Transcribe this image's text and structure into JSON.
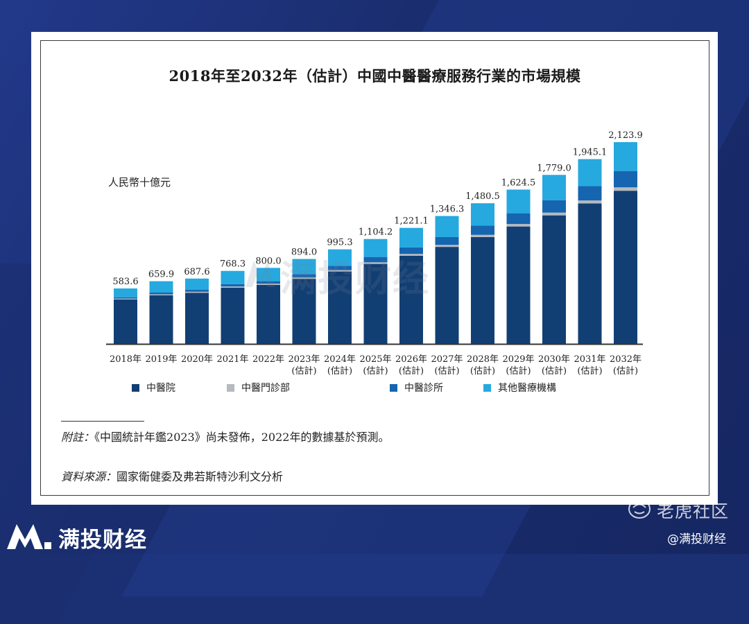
{
  "page": {
    "title": "2018年至2032年（估計）中國中醫醫療服務行業的市場規模",
    "unit": "人民幣十億元",
    "note_label": "附註：",
    "note_text": "《中國統計年鑑2023》尚未發佈，2022年的數據基於預測。",
    "source_label": "資料來源：",
    "source_text": "國家衛健委及弗若斯特沙利文分析"
  },
  "watermark": {
    "center_text": "满投财经",
    "brand_name": "满投财经",
    "tiger_name": "老虎社区",
    "handle": "@满投财经"
  },
  "colors": {
    "hospital": "#123f73",
    "outpatient": "#b6b9bd",
    "clinic": "#1565b0",
    "other": "#26a9df",
    "axis": "#333333",
    "background": "#1b2f73"
  },
  "chart_data": {
    "type": "bar",
    "stacked": true,
    "title": "2018年至2032年（估計）中國中醫醫療服務行業的市場規模",
    "ylabel": "人民幣十億元",
    "ylim": [
      0,
      2200
    ],
    "grid": false,
    "legend_position": "bottom",
    "categories": [
      "2018年",
      "2019年",
      "2020年",
      "2021年",
      "2022年",
      "2023年",
      "2024年",
      "2025年",
      "2026年",
      "2027年",
      "2028年",
      "2029年",
      "2030年",
      "2031年",
      "2032年"
    ],
    "category_sublabels": [
      "",
      "",
      "",
      "",
      "",
      "(估計)",
      "(估計)",
      "(估計)",
      "(估計)",
      "(估計)",
      "(估計)",
      "(估計)",
      "(估計)",
      "(估計)",
      "(估計)"
    ],
    "totals": [
      583.6,
      659.9,
      687.6,
      768.3,
      800.0,
      894.0,
      995.3,
      1104.2,
      1221.1,
      1346.3,
      1480.5,
      1624.5,
      1779.0,
      1945.1,
      2123.9
    ],
    "total_labels": [
      "583.6",
      "659.9",
      "687.6",
      "768.3",
      "800.0",
      "894.0",
      "995.3",
      "1,104.2",
      "1,221.1",
      "1,346.3",
      "1,480.5",
      "1,624.5",
      "1,779.0",
      "1,945.1",
      "2,123.9"
    ],
    "series": [
      {
        "name": "中醫院",
        "color": "#123f73",
        "values": [
          468.0,
          512.0,
          538.0,
          592.0,
          622.0,
          685.0,
          762.0,
          842.0,
          928.0,
          1021.0,
          1124.0,
          1236.0,
          1353.0,
          1478.0,
          1612.0
        ]
      },
      {
        "name": "中醫門診部",
        "color": "#b6b9bd",
        "values": [
          9.0,
          10.0,
          11.0,
          12.0,
          12.0,
          14.0,
          15.0,
          17.0,
          19.0,
          21.0,
          24.0,
          26.0,
          29.0,
          32.0,
          36.0
        ]
      },
      {
        "name": "中醫診所",
        "color": "#1565b0",
        "values": [
          14.0,
          18.0,
          20.0,
          24.0,
          26.0,
          35.0,
          45.0,
          56.0,
          68.0,
          82.0,
          97.0,
          113.0,
          131.0,
          151.0,
          172.0
        ]
      },
      {
        "name": "其他醫療機構",
        "color": "#26a9df",
        "values": [
          92.6,
          119.9,
          118.6,
          140.3,
          140.0,
          160.0,
          173.3,
          189.2,
          206.1,
          222.3,
          235.5,
          249.5,
          266.0,
          284.1,
          303.9
        ]
      }
    ]
  }
}
